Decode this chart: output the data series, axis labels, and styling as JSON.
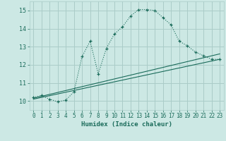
{
  "title": "",
  "xlabel": "Humidex (Indice chaleur)",
  "bg_color": "#cce8e4",
  "grid_color": "#aaccc8",
  "line_color": "#1a6b5a",
  "xlim": [
    -0.5,
    23.5
  ],
  "ylim": [
    9.5,
    15.5
  ],
  "xticks": [
    0,
    1,
    2,
    3,
    4,
    5,
    6,
    7,
    8,
    9,
    10,
    11,
    12,
    13,
    14,
    15,
    16,
    17,
    18,
    19,
    20,
    21,
    22,
    23
  ],
  "yticks": [
    10,
    11,
    12,
    13,
    14,
    15
  ],
  "curve1_x": [
    0,
    1,
    2,
    3,
    4,
    5,
    6,
    7,
    8,
    9,
    10,
    11,
    12,
    13,
    14,
    15,
    16,
    17,
    18,
    19,
    20,
    21,
    22,
    23
  ],
  "curve1_y": [
    10.2,
    10.3,
    10.1,
    9.95,
    10.05,
    10.5,
    12.45,
    13.3,
    11.5,
    12.9,
    13.7,
    14.1,
    14.7,
    15.05,
    15.05,
    15.0,
    14.6,
    14.2,
    13.3,
    13.05,
    12.7,
    12.5,
    12.3,
    12.3
  ],
  "line2_x": [
    0,
    23
  ],
  "line2_y": [
    10.1,
    12.3
  ],
  "line3_x": [
    0,
    23
  ],
  "line3_y": [
    10.15,
    12.6
  ]
}
